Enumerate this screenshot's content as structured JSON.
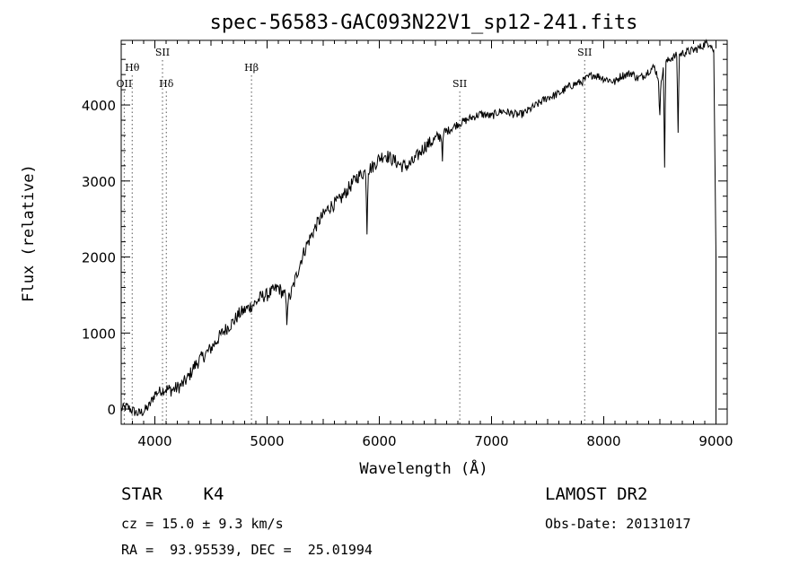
{
  "chart_data": {
    "type": "line",
    "title": "spec-56583-GAC093N22V1_sp12-241.fits",
    "xlabel": "Wavelength (Å)",
    "ylabel": "Flux (relative)",
    "xlim": [
      3700,
      9100
    ],
    "ylim": [
      -200,
      4850
    ],
    "x_ticks": [
      4000,
      5000,
      6000,
      7000,
      8000,
      9000
    ],
    "x_tick_labels": [
      "4000",
      "5000",
      "6000",
      "7000",
      "8000",
      "9000"
    ],
    "y_ticks": [
      0,
      1000,
      2000,
      3000,
      4000
    ],
    "y_tick_labels": [
      "0",
      "1000",
      "2000",
      "3000",
      "4000"
    ],
    "grid": false,
    "legend": "none",
    "line_color": "#000000",
    "series": [
      {
        "x": [
          3700,
          3750,
          3800,
          3850,
          3900,
          3950,
          4000,
          4050,
          4100,
          4150,
          4200,
          4250,
          4300,
          4350,
          4400,
          4450,
          4500,
          4550,
          4600,
          4650,
          4700,
          4750,
          4800,
          4850,
          4900,
          4950,
          5000,
          5050,
          5100,
          5150,
          5200,
          5250,
          5300,
          5350,
          5400,
          5450,
          5500,
          5550,
          5600,
          5650,
          5700,
          5750,
          5800,
          5850,
          5900,
          5950,
          6000,
          6050,
          6100,
          6150,
          6200,
          6250,
          6300,
          6350,
          6400,
          6450,
          6500,
          6550,
          6600,
          6650,
          6700,
          6750,
          6800,
          6850,
          6900,
          6950,
          7000,
          7050,
          7100,
          7150,
          7200,
          7250,
          7300,
          7350,
          7400,
          7450,
          7500,
          7550,
          7600,
          7650,
          7700,
          7750,
          7800,
          7850,
          7900,
          7950,
          8000,
          8050,
          8100,
          8150,
          8200,
          8250,
          8300,
          8350,
          8400,
          8450,
          8500,
          8550,
          8600,
          8650,
          8700,
          8750,
          8800,
          8850,
          8900,
          8950,
          8980,
          9000
        ],
        "y": [
          0,
          30,
          -20,
          -60,
          -30,
          40,
          200,
          240,
          260,
          250,
          280,
          330,
          420,
          560,
          650,
          720,
          800,
          900,
          1000,
          1080,
          1150,
          1250,
          1300,
          1350,
          1400,
          1480,
          1500,
          1550,
          1600,
          1500,
          1450,
          1700,
          1950,
          2150,
          2300,
          2450,
          2550,
          2650,
          2700,
          2750,
          2850,
          2950,
          3050,
          3100,
          3150,
          3200,
          3300,
          3350,
          3300,
          3250,
          3200,
          3200,
          3250,
          3350,
          3450,
          3500,
          3550,
          3600,
          3650,
          3700,
          3750,
          3780,
          3820,
          3850,
          3880,
          3870,
          3850,
          3900,
          3920,
          3900,
          3880,
          3870,
          3900,
          3950,
          4000,
          4050,
          4100,
          4120,
          4150,
          4200,
          4250,
          4280,
          4300,
          4350,
          4400,
          4380,
          4350,
          4330,
          4300,
          4380,
          4400,
          4420,
          4350,
          4380,
          4450,
          4500,
          4300,
          4550,
          4620,
          4650,
          4680,
          4700,
          4720,
          4750,
          4800,
          4820,
          4700,
          2000
        ]
      }
    ],
    "absorption_dips": [
      {
        "x": 5175,
        "depth": 350
      },
      {
        "x": 5890,
        "depth": 800
      },
      {
        "x": 6563,
        "depth": 300
      },
      {
        "x": 8498,
        "depth": 600
      },
      {
        "x": 8542,
        "depth": 1300
      },
      {
        "x": 8662,
        "depth": 1050
      }
    ],
    "line_markers": [
      {
        "x": 3727,
        "label": "OII",
        "row": 3
      },
      {
        "x": 3798,
        "label": "Hθ",
        "row": 1
      },
      {
        "x": 4068,
        "label": "SII",
        "row": 0
      },
      {
        "x": 4102,
        "label": "Hδ",
        "row": 3
      },
      {
        "x": 4861,
        "label": "Hβ",
        "row": 1
      },
      {
        "x": 6717,
        "label": "SII",
        "row": 3
      },
      {
        "x": 7830,
        "label": "SII",
        "row": 0
      }
    ]
  },
  "info": {
    "class": "STAR    K4",
    "survey": "LAMOST DR2",
    "redshift": "cz = 15.0 ± 9.3 km/s",
    "obsdate": "Obs-Date: 20131017",
    "coords": "RA =  93.95539, DEC =  25.01994"
  }
}
